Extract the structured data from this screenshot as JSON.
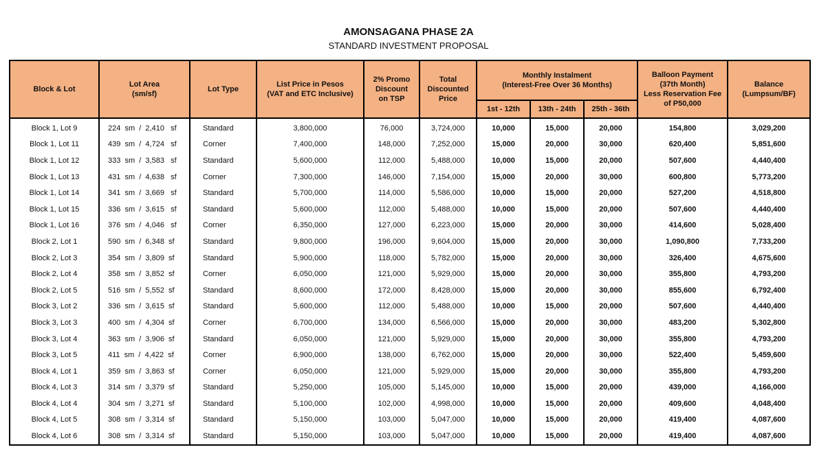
{
  "title": "AMONSAGANA PHASE 2A",
  "subtitle": "STANDARD INVESTMENT PROPOSAL",
  "headers": {
    "block_lot": "Block & Lot",
    "lot_area": "Lot Area",
    "lot_area_unit": "(sm/sf)",
    "lot_type": "Lot Type",
    "list_price": "List Price in Pesos",
    "list_price_note": "(VAT and ETC Inclusive)",
    "promo": "2% Promo Discount on TSP",
    "total": "Total Discounted Price",
    "monthly": "Monthly Instalment",
    "monthly_note": "(Interest-Free Over 36 Months)",
    "m1": "1st - 12th",
    "m2": "13th - 24th",
    "m3": "25th - 36th",
    "balloon": "Balloon Payment",
    "balloon_l2": "(37th Month)",
    "balloon_l3": "Less Reservation Fee",
    "balloon_l4": "of P50,000",
    "balance": "Balance",
    "balance_note": "(Lumpsum/BF)"
  },
  "rows": [
    [
      "Block 1, Lot 9",
      "224  sm  /  2,410   sf",
      "Standard",
      "3,800,000",
      "76,000",
      "3,724,000",
      "10,000",
      "15,000",
      "20,000",
      "154,800",
      "3,029,200"
    ],
    [
      "Block 1, Lot 11",
      "439  sm  /  4,724   sf",
      "Corner",
      "7,400,000",
      "148,000",
      "7,252,000",
      "15,000",
      "20,000",
      "30,000",
      "620,400",
      "5,851,600"
    ],
    [
      "Block 1, Lot 12",
      "333  sm  /  3,583   sf",
      "Standard",
      "5,600,000",
      "112,000",
      "5,488,000",
      "10,000",
      "15,000",
      "20,000",
      "507,600",
      "4,440,400"
    ],
    [
      "Block 1, Lot 13",
      "431  sm  /  4,638   sf",
      "Corner",
      "7,300,000",
      "146,000",
      "7,154,000",
      "15,000",
      "20,000",
      "30,000",
      "600,800",
      "5,773,200"
    ],
    [
      "Block 1, Lot 14",
      "341  sm  /  3,669   sf",
      "Standard",
      "5,700,000",
      "114,000",
      "5,586,000",
      "10,000",
      "15,000",
      "20,000",
      "527,200",
      "4,518,800"
    ],
    [
      "Block 1, Lot 15",
      "336  sm  /  3,615   sf",
      "Standard",
      "5,600,000",
      "112,000",
      "5,488,000",
      "10,000",
      "15,000",
      "20,000",
      "507,600",
      "4,440,400"
    ],
    [
      "Block 1, Lot 16",
      "376  sm  /  4,046   sf",
      "Corner",
      "6,350,000",
      "127,000",
      "6,223,000",
      "15,000",
      "20,000",
      "30,000",
      "414,600",
      "5,028,400"
    ],
    [
      "Block 2, Lot 1",
      "590  sm  /  6,348  sf",
      "Standard",
      "9,800,000",
      "196,000",
      "9,604,000",
      "15,000",
      "20,000",
      "30,000",
      "1,090,800",
      "7,733,200"
    ],
    [
      "Block 2, Lot 3",
      "354  sm  /  3,809  sf",
      "Standard",
      "5,900,000",
      "118,000",
      "5,782,000",
      "15,000",
      "20,000",
      "30,000",
      "326,400",
      "4,675,600"
    ],
    [
      "Block 2, Lot 4",
      "358  sm  /  3,852  sf",
      "Corner",
      "6,050,000",
      "121,000",
      "5,929,000",
      "15,000",
      "20,000",
      "30,000",
      "355,800",
      "4,793,200"
    ],
    [
      "Block 2, Lot 5",
      "516  sm  /  5,552  sf",
      "Standard",
      "8,600,000",
      "172,000",
      "8,428,000",
      "15,000",
      "20,000",
      "30,000",
      "855,600",
      "6,792,400"
    ],
    [
      "Block 3, Lot 2",
      "336  sm  /  3,615  sf",
      "Standard",
      "5,600,000",
      "112,000",
      "5,488,000",
      "10,000",
      "15,000",
      "20,000",
      "507,600",
      "4,440,400"
    ],
    [
      "Block 3, Lot 3",
      "400  sm  /  4,304  sf",
      "Corner",
      "6,700,000",
      "134,000",
      "6,566,000",
      "15,000",
      "20,000",
      "30,000",
      "483,200",
      "5,302,800"
    ],
    [
      "Block 3, Lot 4",
      "363  sm  /  3,906  sf",
      "Standard",
      "6,050,000",
      "121,000",
      "5,929,000",
      "15,000",
      "20,000",
      "30,000",
      "355,800",
      "4,793,200"
    ],
    [
      "Block 3, Lot 5",
      "411  sm  /  4,422  sf",
      "Corner",
      "6,900,000",
      "138,000",
      "6,762,000",
      "15,000",
      "20,000",
      "30,000",
      "522,400",
      "5,459,600"
    ],
    [
      "Block 4, Lot 1",
      "359  sm  /  3,863  sf",
      "Corner",
      "6,050,000",
      "121,000",
      "5,929,000",
      "15,000",
      "20,000",
      "30,000",
      "355,800",
      "4,793,200"
    ],
    [
      "Block 4, Lot 3",
      "314  sm  /  3,379  sf",
      "Standard",
      "5,250,000",
      "105,000",
      "5,145,000",
      "10,000",
      "15,000",
      "20,000",
      "439,000",
      "4,166,000"
    ],
    [
      "Block 4, Lot 4",
      "304  sm  /  3,271  sf",
      "Standard",
      "5,100,000",
      "102,000",
      "4,998,000",
      "10,000",
      "15,000",
      "20,000",
      "409,600",
      "4,048,400"
    ],
    [
      "Block 4, Lot 5",
      "308  sm  /  3,314  sf",
      "Standard",
      "5,150,000",
      "103,000",
      "5,047,000",
      "10,000",
      "15,000",
      "20,000",
      "419,400",
      "4,087,600"
    ],
    [
      "Block 4, Lot 6",
      "308  sm  /  3,314  sf",
      "Standard",
      "5,150,000",
      "103,000",
      "5,047,000",
      "10,000",
      "15,000",
      "20,000",
      "419,400",
      "4,087,600"
    ]
  ],
  "colors": {
    "header_bg": "#f4b183",
    "border": "#000000"
  }
}
